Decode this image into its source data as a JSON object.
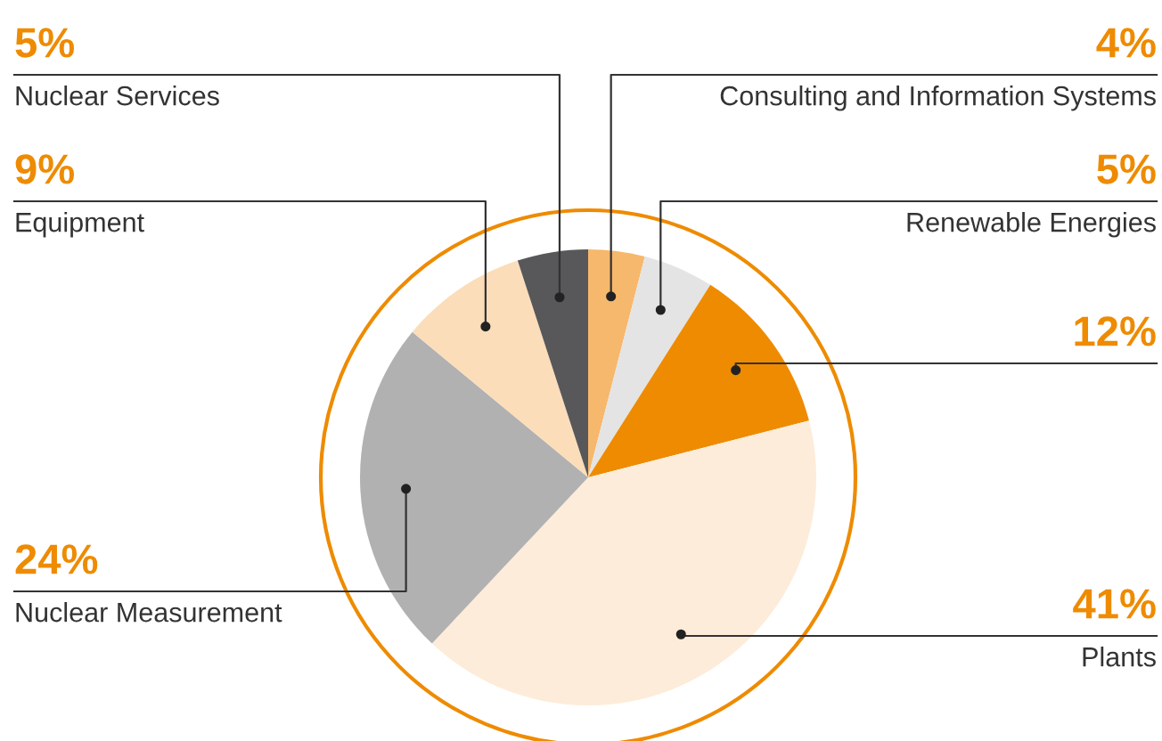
{
  "chart_data": {
    "type": "pie",
    "categories": [
      "Consulting and Information Systems",
      "Renewable Energies",
      null,
      "Plants",
      "Nuclear Measurement",
      "Equipment",
      "Nuclear Services"
    ],
    "values": [
      4,
      5,
      12,
      41,
      24,
      9,
      5
    ],
    "colors": [
      "#f6b86c",
      "#e4e4e4",
      "#ee8b00",
      "#fdecd9",
      "#b1b1b2",
      "#fbddb9",
      "#58585a"
    ],
    "value_labels": [
      "4%",
      "5%",
      "12%",
      "41%",
      "24%",
      "9%",
      "5%"
    ]
  }
}
